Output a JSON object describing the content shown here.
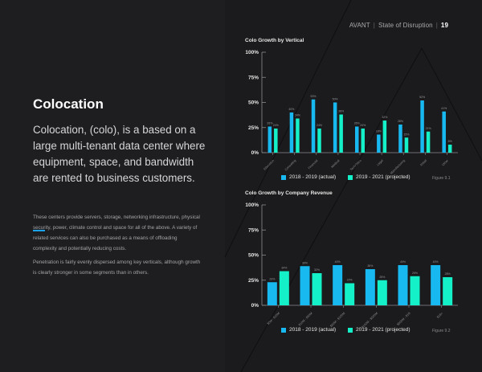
{
  "colors": {
    "background_left": "#1e1d1f",
    "background_right": "#1b1a1c",
    "series_actual": "#17b9f0",
    "series_projected": "#14f0c8",
    "accent": "#1aa3e8",
    "axis": "#8d8d90"
  },
  "header": {
    "brand": "AVANT",
    "publication": "State of Disruption",
    "page_number": "19"
  },
  "left": {
    "title": "Colocation",
    "lead": "Colocation, (colo), is a based on a large multi-tenant data center where equipment, space, and bandwidth are rented to business customers.",
    "paragraphs": [
      "These centers provide servers, storage, networking infrastructure, physical security, power, climate control and space for all of the above. A variety of related services can also be purchased as a means of offloading complexity and potentially reducing costs.",
      "Penetration is fairly evenly dispersed among key verticals, although growth is clearly stronger in some segments than in others."
    ]
  },
  "chart_data": [
    {
      "type": "bar",
      "title": "Colo Growth by Vertical",
      "categories": [
        "Education",
        "Consulting",
        "Financial",
        "Medical",
        "Tech/Telco",
        "Legal",
        "Manufacturing",
        "Retail",
        "Other"
      ],
      "series": [
        {
          "name": "2018 - 2019 (actual)",
          "values": [
            26,
            40,
            53,
            50,
            26,
            18,
            28,
            52,
            41
          ]
        },
        {
          "name": "2019 - 2021 (projected)",
          "values": [
            24,
            34,
            24,
            38,
            24,
            32,
            15,
            21,
            8
          ]
        }
      ],
      "yticks": [
        "0%",
        "25%",
        "50%",
        "75%",
        "100%"
      ],
      "ylim": [
        0,
        100
      ],
      "legend": "bottom",
      "figure_label": "Figure 9.1",
      "xlabel": "",
      "ylabel": ""
    },
    {
      "type": "bar",
      "title": "Colo Growth by Company Revenue",
      "categories": [
        "$0M - $10M",
        "$10M - $50M",
        "$50M - $100M",
        "$100M - $500M",
        "$500M - $1B",
        "$1B+"
      ],
      "series": [
        {
          "name": "2018 - 2019 (actual)",
          "values": [
            23,
            39,
            40,
            36,
            40,
            40
          ]
        },
        {
          "name": "2019 - 2021 (projected)",
          "values": [
            34,
            32,
            22,
            25,
            29,
            28
          ]
        }
      ],
      "yticks": [
        "0%",
        "25%",
        "50%",
        "75%",
        "100%"
      ],
      "ylim": [
        0,
        100
      ],
      "legend": "bottom",
      "figure_label": "Figure 9.2",
      "xlabel": "",
      "ylabel": ""
    }
  ]
}
